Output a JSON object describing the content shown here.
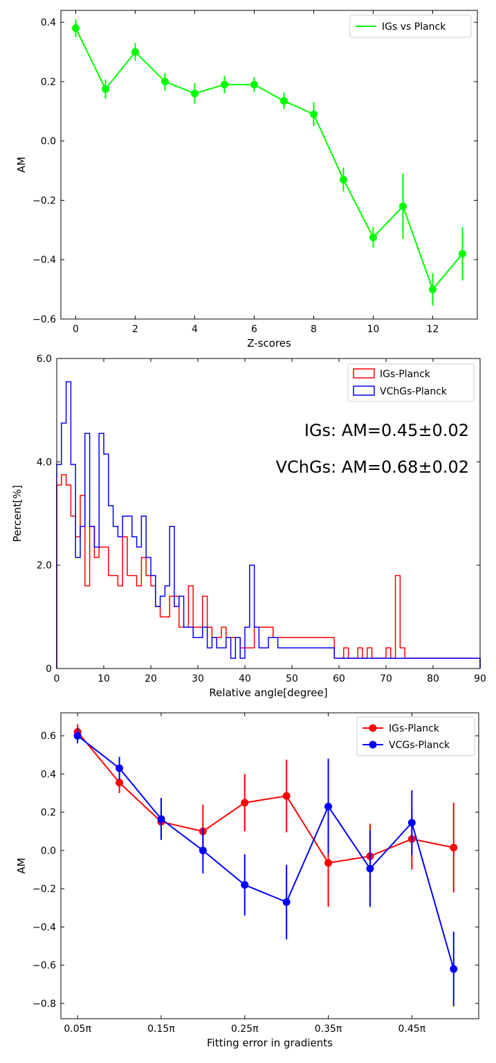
{
  "chart_data": [
    {
      "type": "line",
      "title": "",
      "xlabel": "Z-scores",
      "ylabel": "AM",
      "xlim": [
        -0.5,
        13.5
      ],
      "ylim": [
        -0.6,
        0.44
      ],
      "xticks": [
        0,
        2,
        4,
        6,
        8,
        10,
        12
      ],
      "xtick_labels": [
        "0",
        "2",
        "4",
        "6",
        "8",
        "10",
        "12"
      ],
      "yticks": [
        -0.6,
        -0.4,
        -0.2,
        0.0,
        0.2,
        0.4
      ],
      "ytick_labels": [
        "−0.6",
        "−0.4",
        "−0.2",
        "0.0",
        "0.2",
        "0.4"
      ],
      "legend_position": "top-right",
      "series": [
        {
          "name": "IGs vs Planck",
          "color": "#00ff00",
          "x": [
            0,
            1,
            2,
            3,
            4,
            5,
            6,
            7,
            8,
            9,
            10,
            11,
            12,
            13
          ],
          "y": [
            0.38,
            0.175,
            0.3,
            0.2,
            0.16,
            0.19,
            0.19,
            0.135,
            0.09,
            -0.13,
            -0.325,
            -0.22,
            -0.5,
            -0.38
          ],
          "err": [
            0.03,
            0.032,
            0.03,
            0.03,
            0.035,
            0.03,
            0.025,
            0.028,
            0.04,
            0.04,
            0.035,
            0.11,
            0.055,
            0.09
          ]
        }
      ]
    },
    {
      "type": "histogram",
      "title": "",
      "xlabel": "Relative angle[degree]",
      "ylabel": "Percent[%]",
      "xlim": [
        0,
        90
      ],
      "ylim": [
        0,
        6.0
      ],
      "xticks": [
        0,
        10,
        20,
        30,
        40,
        50,
        60,
        70,
        80,
        90
      ],
      "xtick_labels": [
        "0",
        "10",
        "20",
        "30",
        "40",
        "50",
        "60",
        "70",
        "80",
        "90"
      ],
      "yticks": [
        0,
        2.0,
        4.0,
        6.0
      ],
      "ytick_labels": [
        "0",
        "2.0",
        "4.0",
        "6.0"
      ],
      "bin_width": 1,
      "legend_position": "top-right",
      "annotations": [
        "IGs: AM=0.45±0.02",
        "VChGs: AM=0.68±0.02"
      ],
      "series": [
        {
          "name": "IGs-Planck",
          "color": "#ff0000",
          "values": [
            3.55,
            3.75,
            3.55,
            2.95,
            2.55,
            3.35,
            1.6,
            2.75,
            2.15,
            2.35,
            2.35,
            1.8,
            1.8,
            1.6,
            2.55,
            1.8,
            1.8,
            1.6,
            2.15,
            1.8,
            1.6,
            1.2,
            1.0,
            1.0,
            1.4,
            1.4,
            0.8,
            0.8,
            1.6,
            0.8,
            0.8,
            1.4,
            0.8,
            0.6,
            0.6,
            0.8,
            0.6,
            0.6,
            0.6,
            0.4,
            0.4,
            0.4,
            0.8,
            0.8,
            0.8,
            0.8,
            0.6,
            0.6,
            0.6,
            0.6,
            0.6,
            0.6,
            0.6,
            0.6,
            0.6,
            0.6,
            0.6,
            0.6,
            0.6,
            0.2,
            0.2,
            0.4,
            0.2,
            0.2,
            0.4,
            0.2,
            0.4,
            0.2,
            0.2,
            0.2,
            0.4,
            0.2,
            1.8,
            0.4,
            0.2,
            0.2,
            0.2,
            0.2,
            0.2,
            0.2,
            0.2,
            0.2,
            0.2,
            0.2,
            0.2,
            0.2,
            0.2,
            0.2,
            0.2,
            0.2
          ]
        },
        {
          "name": "VChGs-Planck",
          "color": "#0000ff",
          "values": [
            3.95,
            4.75,
            5.55,
            3.95,
            2.15,
            2.75,
            4.55,
            2.75,
            2.35,
            4.55,
            4.15,
            3.15,
            2.75,
            2.55,
            2.95,
            2.95,
            2.55,
            2.35,
            2.95,
            2.15,
            1.8,
            1.2,
            1.4,
            1.6,
            2.75,
            1.2,
            1.4,
            0.8,
            0.8,
            0.6,
            0.6,
            0.8,
            0.4,
            0.6,
            0.4,
            0.4,
            0.6,
            0.2,
            0.6,
            0.2,
            0.8,
            2.0,
            0.8,
            0.4,
            0.4,
            0.6,
            0.6,
            0.4,
            0.4,
            0.4,
            0.4,
            0.4,
            0.4,
            0.4,
            0.4,
            0.4,
            0.4,
            0.4,
            0.4,
            0.2,
            0.2,
            0.2,
            0.2,
            0.2,
            0.2,
            0.2,
            0.2,
            0.2,
            0.2,
            0.2,
            0.2,
            0.2,
            0.2,
            0.2,
            0.2,
            0.2,
            0.2,
            0.2,
            0.2,
            0.2,
            0.2,
            0.2,
            0.2,
            0.2,
            0.2,
            0.2,
            0.2,
            0.2,
            0.2,
            0.2
          ]
        }
      ]
    },
    {
      "type": "line",
      "title": "",
      "xlabel": "Fitting error in gradients",
      "ylabel": "AM",
      "xlim": [
        0.03,
        0.53
      ],
      "ylim": [
        -0.88,
        0.72
      ],
      "xticks": [
        0.05,
        0.15,
        0.25,
        0.35,
        0.45
      ],
      "xtick_labels": [
        "0.05π",
        "0.15π",
        "0.25π",
        "0.35π",
        "0.45π"
      ],
      "yticks": [
        -0.8,
        -0.6,
        -0.4,
        -0.2,
        0.0,
        0.2,
        0.4,
        0.6
      ],
      "ytick_labels": [
        "−0.8",
        "−0.6",
        "−0.4",
        "−0.2",
        "0.0",
        "0.2",
        "0.4",
        "0.6"
      ],
      "legend_position": "top-right",
      "series": [
        {
          "name": "IGs-Planck",
          "color": "#ff0000",
          "x": [
            0.05,
            0.1,
            0.15,
            0.2,
            0.25,
            0.3,
            0.35,
            0.4,
            0.45,
            0.5
          ],
          "y": [
            0.62,
            0.355,
            0.15,
            0.1,
            0.25,
            0.285,
            -0.065,
            -0.03,
            0.06,
            0.015
          ],
          "err": [
            0.04,
            0.055,
            0.08,
            0.14,
            0.15,
            0.19,
            0.23,
            0.17,
            0.16,
            0.235
          ]
        },
        {
          "name": "VCGs-Planck",
          "color": "#0000ff",
          "x": [
            0.05,
            0.1,
            0.15,
            0.2,
            0.25,
            0.3,
            0.35,
            0.4,
            0.45,
            0.5
          ],
          "y": [
            0.6,
            0.43,
            0.165,
            0.0,
            -0.18,
            -0.27,
            0.23,
            -0.095,
            0.145,
            -0.62
          ],
          "err": [
            0.04,
            0.06,
            0.11,
            0.12,
            0.16,
            0.195,
            0.25,
            0.2,
            0.17,
            0.195
          ]
        }
      ]
    }
  ]
}
